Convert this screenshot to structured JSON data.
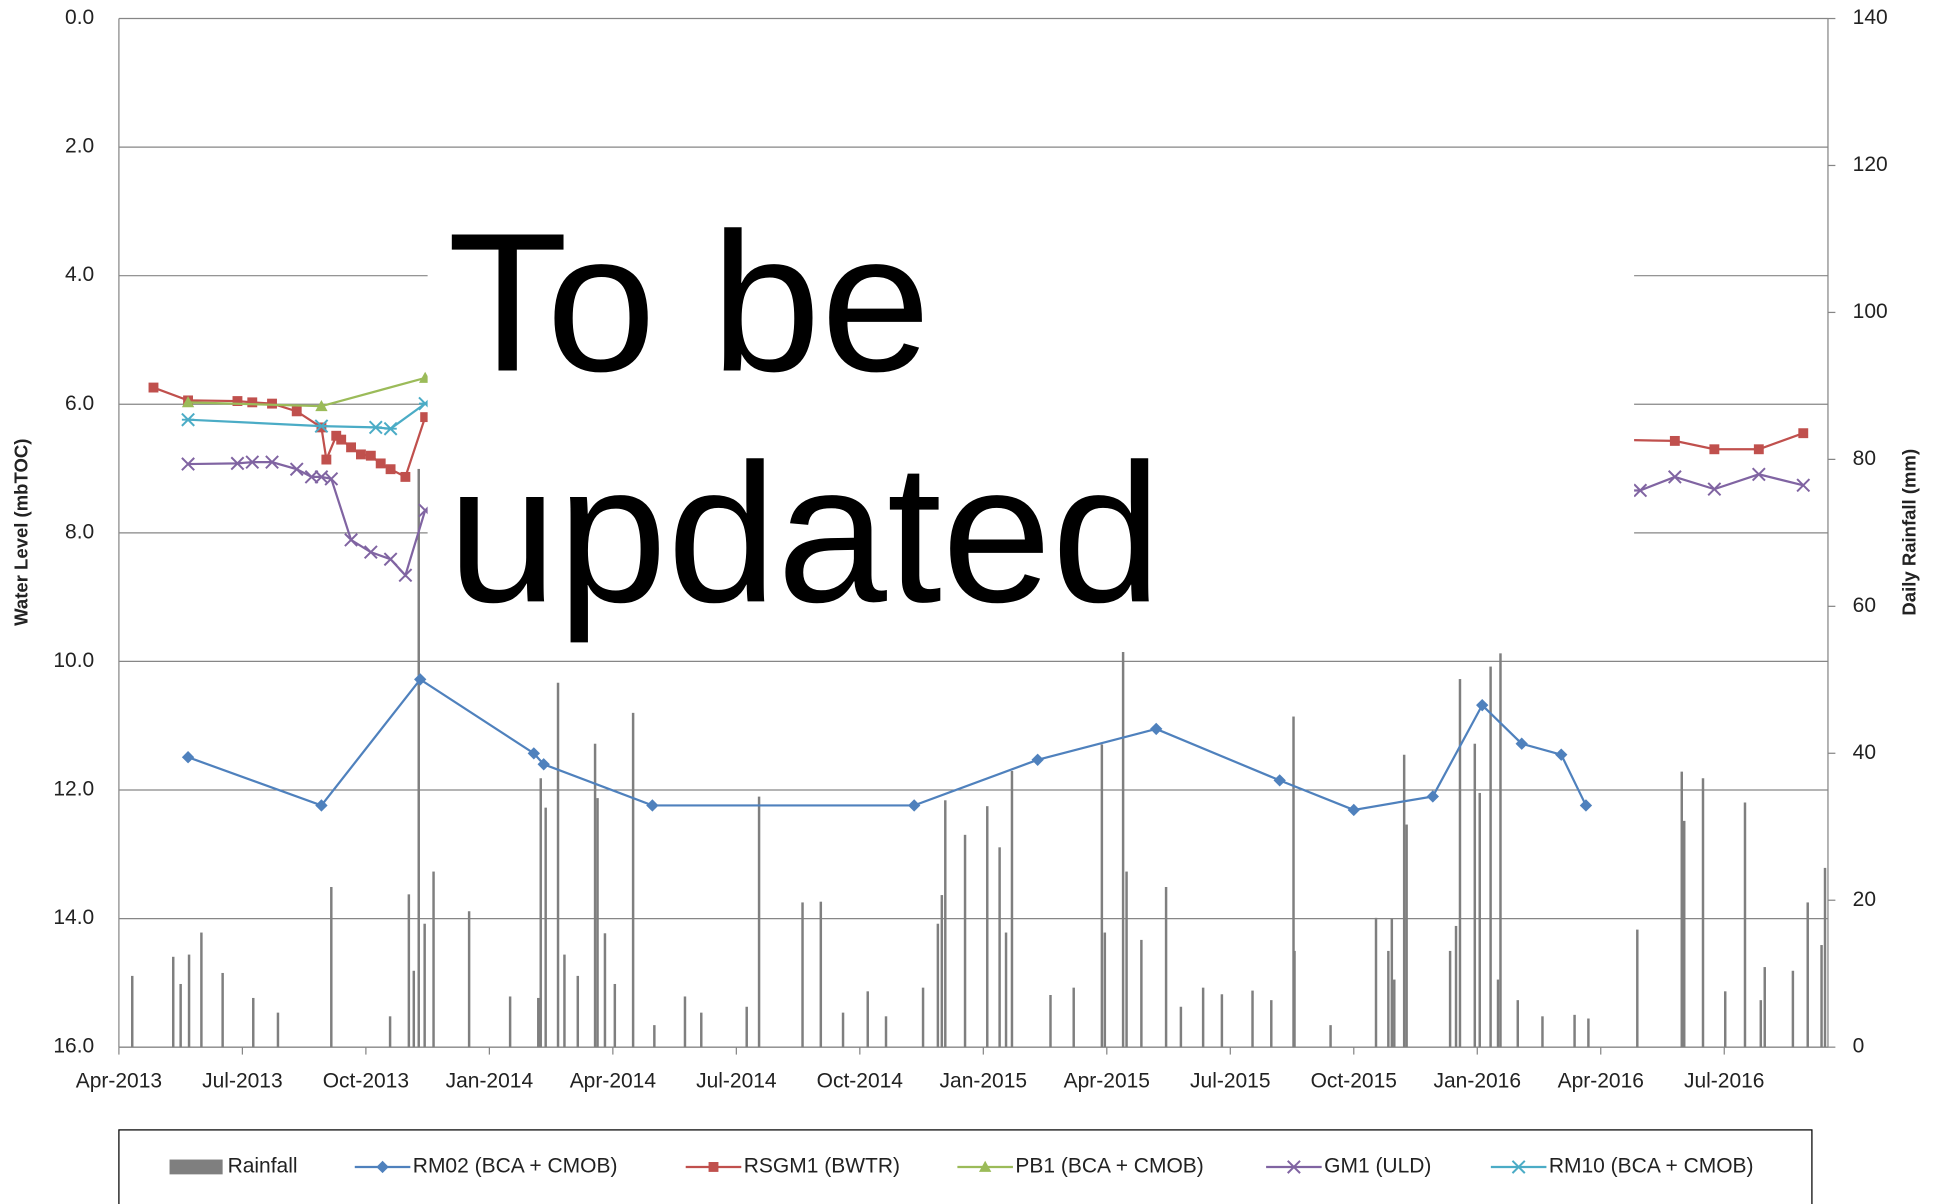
{
  "chart_data": {
    "type": "line",
    "annotation_lines": [
      "To be",
      "updated"
    ],
    "y_label": "Water Level (mbTOC)",
    "y2_label": "Daily Rainfall (mm)",
    "xlim": [
      2013.25,
      2016.71
    ],
    "xticks": [
      {
        "value": 2013.25,
        "label": "Apr-2013"
      },
      {
        "value": 2013.5,
        "label": "Jul-2013"
      },
      {
        "value": 2013.75,
        "label": "Oct-2013"
      },
      {
        "value": 2014.0,
        "label": "Jan-2014"
      },
      {
        "value": 2014.25,
        "label": "Apr-2014"
      },
      {
        "value": 2014.5,
        "label": "Jul-2014"
      },
      {
        "value": 2014.75,
        "label": "Oct-2014"
      },
      {
        "value": 2015.0,
        "label": "Jan-2015"
      },
      {
        "value": 2015.25,
        "label": "Apr-2015"
      },
      {
        "value": 2015.5,
        "label": "Jul-2015"
      },
      {
        "value": 2015.75,
        "label": "Oct-2015"
      },
      {
        "value": 2016.0,
        "label": "Jan-2016"
      },
      {
        "value": 2016.25,
        "label": "Apr-2016"
      },
      {
        "value": 2016.5,
        "label": "Jul-2016"
      }
    ],
    "ylim": [
      0,
      16
    ],
    "y_inverted": true,
    "yticks": [
      {
        "value": 0,
        "label": "0.0"
      },
      {
        "value": 2,
        "label": "2.0"
      },
      {
        "value": 4,
        "label": "4.0"
      },
      {
        "value": 6,
        "label": "6.0"
      },
      {
        "value": 8,
        "label": "8.0"
      },
      {
        "value": 10,
        "label": "10.0"
      },
      {
        "value": 12,
        "label": "12.0"
      },
      {
        "value": 14,
        "label": "14.0"
      },
      {
        "value": 16,
        "label": "16.0"
      }
    ],
    "y2lim": [
      0,
      140
    ],
    "y2ticks": [
      0,
      20,
      40,
      60,
      80,
      100,
      120,
      140
    ],
    "grid": true,
    "legend": "bottom",
    "series": [
      {
        "name": "Rainfall",
        "type": "bar",
        "axis": "y2",
        "color": "#7f7f7f",
        "x": [
          2013.277,
          2013.36,
          2013.375,
          2013.392,
          2013.417,
          2013.46,
          2013.522,
          2013.572,
          2013.68,
          2013.799,
          2013.837,
          2013.847,
          2013.857,
          2013.869,
          2013.887,
          2013.959,
          2014.042,
          2014.099,
          2014.104,
          2014.114,
          2014.139,
          2014.152,
          2014.179,
          2014.214,
          2014.219,
          2014.234,
          2014.254,
          2014.291,
          2014.334,
          2014.396,
          2014.429,
          2014.521,
          2014.546,
          2014.634,
          2014.671,
          2014.716,
          2014.766,
          2014.803,
          2014.878,
          2014.908,
          2014.916,
          2014.923,
          2014.963,
          2015.008,
          2015.033,
          2015.046,
          2015.058,
          2015.136,
          2015.183,
          2015.24,
          2015.246,
          2015.283,
          2015.29,
          2015.32,
          2015.37,
          2015.4,
          2015.445,
          2015.483,
          2015.545,
          2015.583,
          2015.628,
          2015.63,
          2015.703,
          2015.795,
          2015.82,
          2015.827,
          2015.832,
          2015.852,
          2015.857,
          2015.945,
          2015.957,
          2015.965,
          2015.995,
          2016.005,
          2016.027,
          2016.042,
          2016.047,
          2016.082,
          2016.132,
          2016.197,
          2016.225,
          2016.324,
          2016.414,
          2016.419,
          2016.457,
          2016.502,
          2016.542,
          2016.574,
          2016.582,
          2016.639,
          2016.669,
          2016.697,
          2016.704
        ],
        "values": [
          9.7,
          12.3,
          8.6,
          12.6,
          15.6,
          10.1,
          6.7,
          4.7,
          21.8,
          4.2,
          20.8,
          10.4,
          78.7,
          16.8,
          23.9,
          18.5,
          6.9,
          6.7,
          36.6,
          32.6,
          49.6,
          12.6,
          9.7,
          41.3,
          33.9,
          15.5,
          8.6,
          45.5,
          3.0,
          6.9,
          4.7,
          5.5,
          34.1,
          19.7,
          19.8,
          4.7,
          7.6,
          4.2,
          8.1,
          16.8,
          20.7,
          33.6,
          28.9,
          32.8,
          27.2,
          15.6,
          37.6,
          7.1,
          8.1,
          41.2,
          15.6,
          53.8,
          23.9,
          14.6,
          21.8,
          5.5,
          8.1,
          7.2,
          7.7,
          6.4,
          45.0,
          13.1,
          3.0,
          17.6,
          13.1,
          17.5,
          9.2,
          39.8,
          30.3,
          13.1,
          16.5,
          50.1,
          41.3,
          34.6,
          51.8,
          9.2,
          53.6,
          6.4,
          4.2,
          4.4,
          3.9,
          16.0,
          37.5,
          30.8,
          36.6,
          7.6,
          33.3,
          6.4,
          10.9,
          10.4,
          19.7,
          13.9,
          24.4
        ]
      },
      {
        "name": "RM02 (BCA + CMOB)",
        "type": "line",
        "axis": "y",
        "color": "#4f81bd",
        "marker": "diamond",
        "x": [
          2013.39,
          2013.66,
          2013.86,
          2014.09,
          2014.11,
          2014.33,
          2014.86,
          2015.11,
          2015.35,
          2015.6,
          2015.75,
          2015.91,
          2016.01,
          2016.09,
          2016.17,
          2016.22
        ],
        "values": [
          11.49,
          12.24,
          10.28,
          11.43,
          11.6,
          12.24,
          12.24,
          11.53,
          11.05,
          11.85,
          12.31,
          12.1,
          10.68,
          11.28,
          11.45,
          12.24
        ]
      },
      {
        "name": "RSGM1 (BWTR)",
        "type": "line",
        "axis": "y",
        "color": "#c0504d",
        "marker": "square",
        "x": [
          2013.32,
          2013.39,
          2013.49,
          2013.52,
          2013.56,
          2013.61,
          2013.66,
          2013.67,
          2013.69,
          2013.7,
          2013.72,
          2013.74,
          2013.76,
          2013.78,
          2013.8,
          2013.83,
          2013.87,
          2016.4,
          2016.48,
          2016.57,
          2016.66
        ],
        "values": [
          5.74,
          5.94,
          5.95,
          5.97,
          5.99,
          6.11,
          6.36,
          6.86,
          6.49,
          6.55,
          6.67,
          6.78,
          6.8,
          6.92,
          7.01,
          7.13,
          6.2,
          6.57,
          6.7,
          6.7,
          6.45
        ]
      },
      {
        "name": "PB1 (BCA + CMOB)",
        "type": "line",
        "axis": "y",
        "color": "#9bbb59",
        "marker": "triangle",
        "x": [
          2013.39,
          2013.66,
          2013.87
        ],
        "values": [
          5.97,
          6.03,
          5.59
        ]
      },
      {
        "name": "GM1 (ULD)",
        "type": "line",
        "axis": "y",
        "color": "#8064a2",
        "marker": "cross",
        "x": [
          2013.39,
          2013.49,
          2013.52,
          2013.56,
          2013.61,
          2013.64,
          2013.66,
          2013.68,
          2013.72,
          2013.76,
          2013.8,
          2013.83,
          2013.87,
          2016.33,
          2016.4,
          2016.48,
          2016.57,
          2016.66
        ],
        "values": [
          6.93,
          6.92,
          6.9,
          6.9,
          7.01,
          7.13,
          7.13,
          7.16,
          8.11,
          8.3,
          8.41,
          8.66,
          7.65,
          7.34,
          7.13,
          7.32,
          7.09,
          7.26
        ]
      },
      {
        "name": "RM10 (BCA + CMOB)",
        "type": "line",
        "axis": "y",
        "color": "#4bacc6",
        "marker": "star",
        "x": [
          2013.39,
          2013.66,
          2013.77,
          2013.8,
          2013.87
        ],
        "values": [
          6.24,
          6.34,
          6.36,
          6.38,
          5.99
        ]
      }
    ]
  }
}
